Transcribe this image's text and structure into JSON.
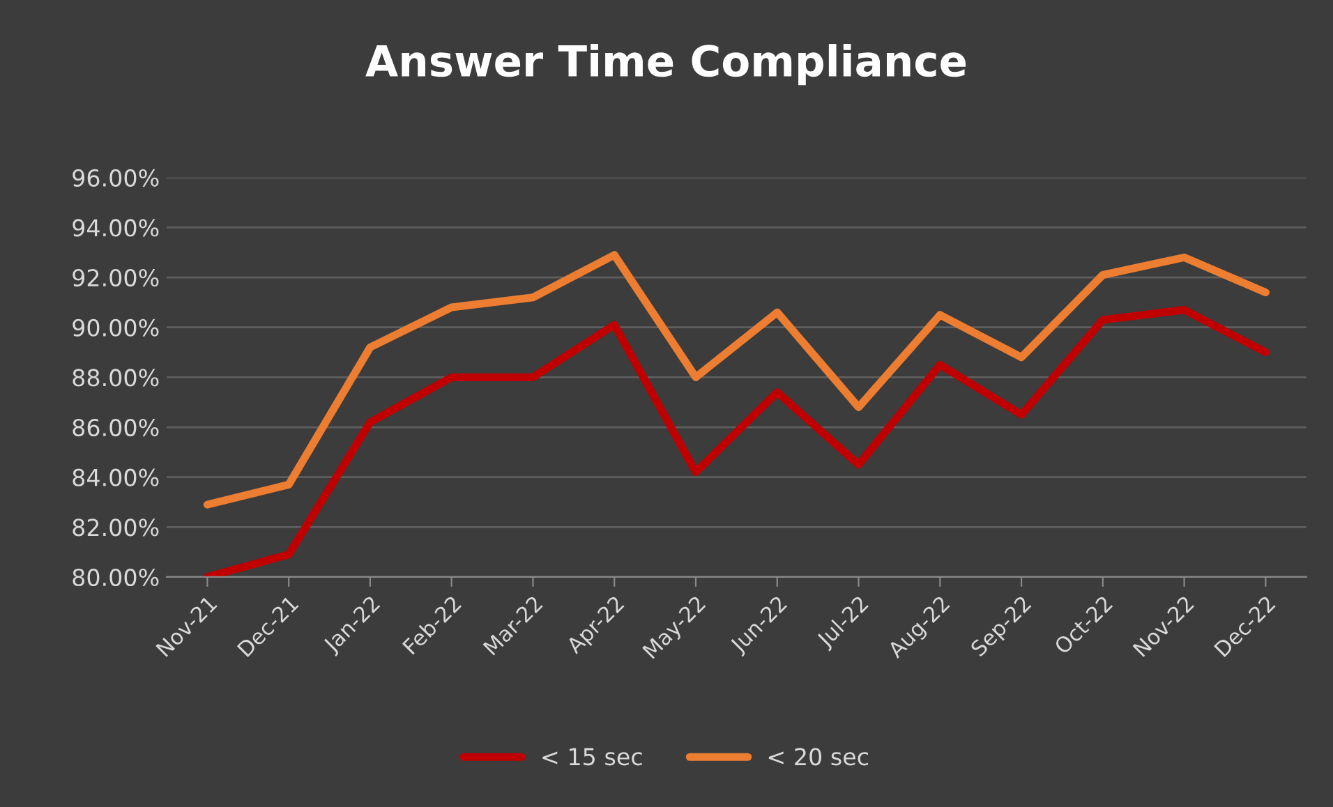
{
  "chart_data": {
    "type": "line",
    "title": "Answer Time Compliance",
    "categories": [
      "Nov-21",
      "Dec-21",
      "Jan-22",
      "Feb-22",
      "Mar-22",
      "Apr-22",
      "May-22",
      "Jun-22",
      "Jul-22",
      "Aug-22",
      "Sep-22",
      "Oct-22",
      "Nov-22",
      "Dec-22"
    ],
    "series": [
      {
        "name": "< 15 sec",
        "color": "#c00000",
        "values": [
          80.0,
          80.9,
          86.2,
          88.0,
          88.0,
          90.1,
          84.2,
          87.4,
          84.5,
          88.5,
          86.5,
          90.3,
          90.7,
          89.0
        ]
      },
      {
        "name": "< 20 sec",
        "color": "#ed7d31",
        "values": [
          82.9,
          83.7,
          89.2,
          90.8,
          91.2,
          92.9,
          88.0,
          90.6,
          86.8,
          90.5,
          88.8,
          92.1,
          92.8,
          91.4
        ]
      }
    ],
    "ylim": [
      80,
      96
    ],
    "yticks": [
      {
        "value": 80,
        "label": "80.00%"
      },
      {
        "value": 82,
        "label": "82.00%"
      },
      {
        "value": 84,
        "label": "84.00%"
      },
      {
        "value": 86,
        "label": "86.00%"
      },
      {
        "value": 88,
        "label": "88.00%"
      },
      {
        "value": 90,
        "label": "90.00%"
      },
      {
        "value": 92,
        "label": "92.00%"
      },
      {
        "value": 94,
        "label": "94.00%"
      },
      {
        "value": 96,
        "label": "96.00%"
      }
    ],
    "grid": "y",
    "legend": "bottom",
    "marker": "none",
    "line_style": "solid"
  }
}
